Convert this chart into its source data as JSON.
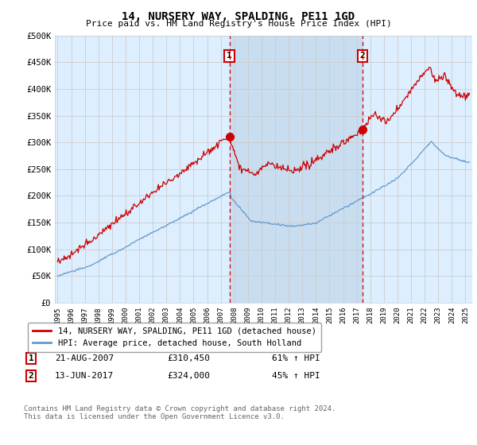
{
  "title": "14, NURSERY WAY, SPALDING, PE11 1GD",
  "subtitle": "Price paid vs. HM Land Registry's House Price Index (HPI)",
  "ylabel_ticks": [
    "£0",
    "£50K",
    "£100K",
    "£150K",
    "£200K",
    "£250K",
    "£300K",
    "£350K",
    "£400K",
    "£450K",
    "£500K"
  ],
  "ytick_values": [
    0,
    50000,
    100000,
    150000,
    200000,
    250000,
    300000,
    350000,
    400000,
    450000,
    500000
  ],
  "ylim": [
    0,
    500000
  ],
  "xlim_start": 1994.8,
  "xlim_end": 2025.5,
  "background_color": "#ddeeff",
  "fig_bg_color": "#ffffff",
  "grid_color": "#cccccc",
  "red_line_color": "#cc0000",
  "blue_line_color": "#6699cc",
  "shaded_region_color": "#c8ddf0",
  "transaction1_x": 2007.64,
  "transaction1_price": 310450,
  "transaction2_x": 2017.44,
  "transaction2_price": 324000,
  "legend_label_red": "14, NURSERY WAY, SPALDING, PE11 1GD (detached house)",
  "legend_label_blue": "HPI: Average price, detached house, South Holland",
  "annot1_label": "1",
  "annot1_date": "21-AUG-2007",
  "annot1_price": "£310,450",
  "annot1_pct": "61% ↑ HPI",
  "annot2_label": "2",
  "annot2_date": "13-JUN-2017",
  "annot2_price": "£324,000",
  "annot2_pct": "45% ↑ HPI",
  "footer": "Contains HM Land Registry data © Crown copyright and database right 2024.\nThis data is licensed under the Open Government Licence v3.0.",
  "xtick_years": [
    1995,
    1996,
    1997,
    1998,
    1999,
    2000,
    2001,
    2002,
    2003,
    2004,
    2005,
    2006,
    2007,
    2008,
    2009,
    2010,
    2011,
    2012,
    2013,
    2014,
    2015,
    2016,
    2017,
    2018,
    2019,
    2020,
    2021,
    2022,
    2023,
    2024,
    2025
  ]
}
